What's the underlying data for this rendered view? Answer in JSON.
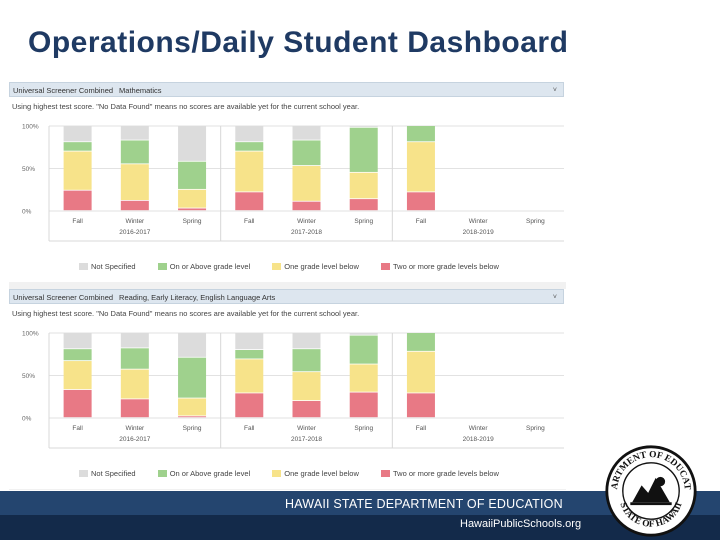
{
  "page_title": "Operations/Daily Student Dashboard",
  "footer": {
    "department": "HAWAII STATE DEPARTMENT OF EDUCATION",
    "website": "HawaiiPublicSchools.org"
  },
  "seal": {
    "top_text": "DEPARTMENT OF EDUCATION",
    "bottom_text": "STATE OF HAWAII"
  },
  "colors": {
    "not_specified": "#dcdcdc",
    "on_or_above": "#9fd18d",
    "one_below": "#f7e38a",
    "two_or_more_below": "#e87985"
  },
  "panels": [
    {
      "header": "Universal Screener Combined",
      "subject": "Mathematics",
      "caret": "˅",
      "note": "Using highest test score. \"No Data Found\" means no scores are available yet for the current school year."
    },
    {
      "header": "Universal Screener Combined",
      "subject": "Reading, Early Literacy, English Language Arts",
      "caret": "˅",
      "note": "Using highest test score. \"No Data Found\" means no scores are available yet for the current school year."
    }
  ],
  "legend": [
    "Not Specified",
    "On or Above grade level",
    "One grade level below",
    "Two or more grade levels below"
  ],
  "chart_data": [
    {
      "type": "bar",
      "stacked": true,
      "y_ticks": [
        "100%",
        "50%",
        "0%"
      ],
      "ylim": [
        0,
        100
      ],
      "categories": [
        "Fall",
        "Winter",
        "Spring",
        "Fall",
        "Winter",
        "Spring",
        "Fall",
        "Winter",
        "Spring"
      ],
      "groups": [
        "2016-2017",
        "2017-2018",
        "2018-2019"
      ],
      "series": [
        {
          "name": "Two or more grade levels below",
          "values": [
            24,
            12,
            3,
            22,
            11,
            14,
            22,
            null,
            null
          ]
        },
        {
          "name": "One grade level below",
          "values": [
            46,
            43,
            22,
            48,
            42,
            31,
            59,
            null,
            null
          ]
        },
        {
          "name": "On or Above grade level",
          "values": [
            11,
            28,
            33,
            11,
            30,
            53,
            19,
            null,
            null
          ]
        },
        {
          "name": "Not Specified",
          "values": [
            19,
            17,
            42,
            19,
            17,
            2,
            0,
            null,
            null
          ]
        }
      ]
    },
    {
      "type": "bar",
      "stacked": true,
      "y_ticks": [
        "100%",
        "50%",
        "0%"
      ],
      "ylim": [
        0,
        100
      ],
      "categories": [
        "Fall",
        "Winter",
        "Spring",
        "Fall",
        "Winter",
        "Spring",
        "Fall",
        "Winter",
        "Spring"
      ],
      "groups": [
        "2016-2017",
        "2017-2018",
        "2018-2019"
      ],
      "series": [
        {
          "name": "Two or more grade levels below",
          "values": [
            33,
            22,
            2,
            29,
            20,
            30,
            29,
            null,
            null
          ]
        },
        {
          "name": "One grade level below",
          "values": [
            34,
            35,
            21,
            40,
            34,
            33,
            49,
            null,
            null
          ]
        },
        {
          "name": "On or Above grade level",
          "values": [
            14,
            25,
            48,
            11,
            27,
            34,
            22,
            null,
            null
          ]
        },
        {
          "name": "Not Specified",
          "values": [
            19,
            18,
            29,
            20,
            19,
            3,
            0,
            null,
            null
          ]
        }
      ]
    }
  ]
}
